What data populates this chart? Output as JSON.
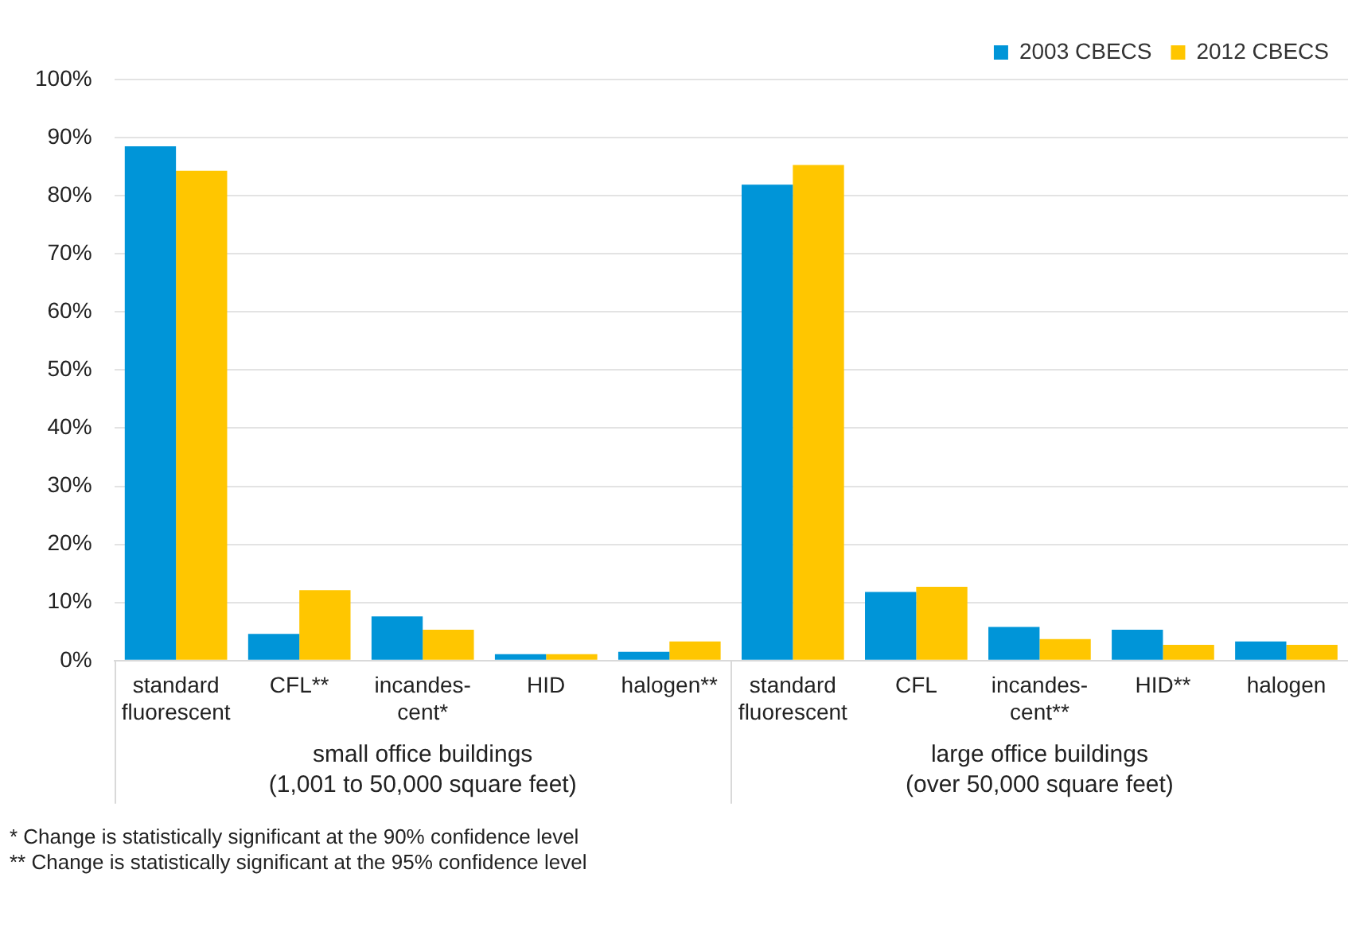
{
  "chart_data": {
    "type": "bar",
    "categories": [
      "standard\nfluorescent",
      "CFL**",
      "incandes-\ncent*",
      "HID",
      "halogen**",
      "standard\nfluorescent",
      "CFL",
      "incandes-\ncent**",
      "HID**",
      "halogen"
    ],
    "series": [
      {
        "name": "2003 CBECS",
        "color": "#0095d8",
        "values": [
          88.5,
          4.6,
          7.6,
          1.1,
          1.5,
          81.9,
          11.8,
          5.8,
          5.3,
          3.3
        ]
      },
      {
        "name": "2012 CBECS",
        "color": "#ffc600",
        "values": [
          84.3,
          12.1,
          5.3,
          1.1,
          3.3,
          85.3,
          12.7,
          3.7,
          2.7,
          2.7
        ]
      }
    ],
    "ylim": [
      0,
      100
    ],
    "yticks": [
      {
        "value": 0,
        "label": "0%"
      },
      {
        "value": 10,
        "label": "10%"
      },
      {
        "value": 20,
        "label": "20%"
      },
      {
        "value": 30,
        "label": "30%"
      },
      {
        "value": 40,
        "label": "40%"
      },
      {
        "value": 50,
        "label": "50%"
      },
      {
        "value": 60,
        "label": "60%"
      },
      {
        "value": 70,
        "label": "70%"
      },
      {
        "value": 80,
        "label": "80%"
      },
      {
        "value": 90,
        "label": "90%"
      },
      {
        "value": 100,
        "label": "100%"
      }
    ],
    "grid": "y",
    "legend": "top right",
    "annotations": [
      "small office buildings\n(1,001 to 50,000 square feet)",
      "large office buildings\n(over 50,000 square feet)",
      "* Change is statistically significant at the 90% confidence level",
      "** Change is statistically significant at the 95% confidence level"
    ]
  }
}
